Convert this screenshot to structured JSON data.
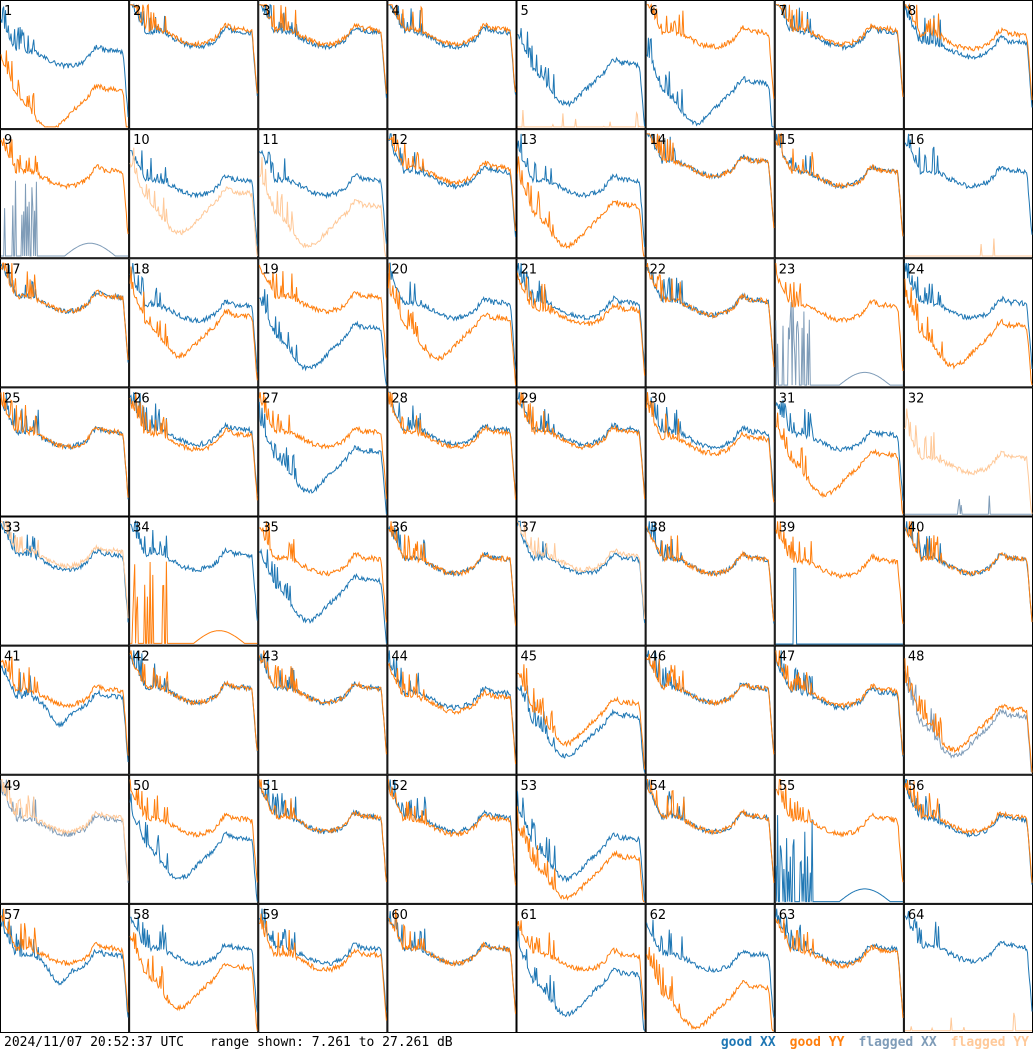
{
  "footer": {
    "timestamp": "2024/11/07 20:52:37 UTC",
    "range": "range shown: 7.261 to 27.261 dB"
  },
  "legend": [
    {
      "label": "good XX",
      "color": "#1f77b4"
    },
    {
      "label": "good YY",
      "color": "#ff7f0e"
    },
    {
      "label": "flagged XX",
      "color": "#7f9cb8"
    },
    {
      "label": "flagged YY",
      "color": "#ffc999"
    }
  ],
  "chart_data": {
    "type": "line",
    "grid": {
      "rows": 8,
      "cols": 8
    },
    "y_range_db": [
      7.261,
      27.261
    ],
    "panels": [
      {
        "label": "1",
        "xx": {
          "shape": "normal",
          "level": 0.55,
          "status": "good"
        },
        "yy": {
          "shape": "dip",
          "level": 0.25,
          "status": "good"
        }
      },
      {
        "label": "2",
        "xx": {
          "shape": "normal",
          "level": 0.7,
          "status": "good"
        },
        "yy": {
          "shape": "normal",
          "level": 0.72,
          "status": "good"
        }
      },
      {
        "label": "3",
        "xx": {
          "shape": "normal",
          "level": 0.7,
          "status": "good"
        },
        "yy": {
          "shape": "normal",
          "level": 0.72,
          "status": "good"
        }
      },
      {
        "label": "4",
        "xx": {
          "shape": "normal",
          "level": 0.7,
          "status": "good"
        },
        "yy": {
          "shape": "normal",
          "level": 0.72,
          "status": "good"
        }
      },
      {
        "label": "5",
        "xx": {
          "shape": "dip",
          "level": 0.45,
          "status": "good"
        },
        "yy": {
          "shape": "flagged_low",
          "level": 0.02,
          "status": "flagged"
        }
      },
      {
        "label": "6",
        "xx": {
          "shape": "dip",
          "level": 0.3,
          "status": "good"
        },
        "yy": {
          "shape": "normal",
          "level": 0.7,
          "status": "good"
        }
      },
      {
        "label": "7",
        "xx": {
          "shape": "normal",
          "level": 0.7,
          "status": "good"
        },
        "yy": {
          "shape": "normal",
          "level": 0.72,
          "status": "good"
        }
      },
      {
        "label": "8",
        "xx": {
          "shape": "normal",
          "level": 0.62,
          "status": "good"
        },
        "yy": {
          "shape": "normal",
          "level": 0.68,
          "status": "good"
        }
      },
      {
        "label": "9",
        "xx": {
          "shape": "spikes_low",
          "level": 0.05,
          "status": "flagged"
        },
        "yy": {
          "shape": "normal",
          "level": 0.62,
          "status": "good"
        }
      },
      {
        "label": "10",
        "xx": {
          "shape": "normal",
          "level": 0.55,
          "status": "good"
        },
        "yy": {
          "shape": "dip",
          "level": 0.45,
          "status": "flagged"
        }
      },
      {
        "label": "11",
        "xx": {
          "shape": "normal",
          "level": 0.55,
          "status": "good"
        },
        "yy": {
          "shape": "dip",
          "level": 0.35,
          "status": "flagged"
        }
      },
      {
        "label": "12",
        "xx": {
          "shape": "normal",
          "level": 0.62,
          "status": "good"
        },
        "yy": {
          "shape": "normal",
          "level": 0.65,
          "status": "good"
        }
      },
      {
        "label": "13",
        "xx": {
          "shape": "normal",
          "level": 0.55,
          "status": "good"
        },
        "yy": {
          "shape": "dip",
          "level": 0.35,
          "status": "good"
        }
      },
      {
        "label": "14",
        "xx": {
          "shape": "normal",
          "level": 0.7,
          "status": "good"
        },
        "yy": {
          "shape": "normal",
          "level": 0.7,
          "status": "good"
        }
      },
      {
        "label": "15",
        "xx": {
          "shape": "normal",
          "level": 0.62,
          "status": "good"
        },
        "yy": {
          "shape": "normal",
          "level": 0.62,
          "status": "good"
        }
      },
      {
        "label": "16",
        "xx": {
          "shape": "normal",
          "level": 0.62,
          "status": "good"
        },
        "yy": {
          "shape": "flagged_low",
          "level": 0.03,
          "status": "flagged"
        }
      },
      {
        "label": "17",
        "xx": {
          "shape": "normal",
          "level": 0.65,
          "status": "good"
        },
        "yy": {
          "shape": "normal",
          "level": 0.65,
          "status": "good"
        }
      },
      {
        "label": "18",
        "xx": {
          "shape": "normal",
          "level": 0.58,
          "status": "good"
        },
        "yy": {
          "shape": "dip",
          "level": 0.5,
          "status": "good"
        }
      },
      {
        "label": "19",
        "xx": {
          "shape": "dip",
          "level": 0.4,
          "status": "good"
        },
        "yy": {
          "shape": "normal",
          "level": 0.65,
          "status": "good"
        }
      },
      {
        "label": "20",
        "xx": {
          "shape": "normal",
          "level": 0.6,
          "status": "good"
        },
        "yy": {
          "shape": "dip",
          "level": 0.48,
          "status": "good"
        }
      },
      {
        "label": "21",
        "xx": {
          "shape": "normal",
          "level": 0.6,
          "status": "good"
        },
        "yy": {
          "shape": "normal",
          "level": 0.55,
          "status": "good"
        }
      },
      {
        "label": "22",
        "xx": {
          "shape": "normal",
          "level": 0.62,
          "status": "good"
        },
        "yy": {
          "shape": "normal",
          "level": 0.62,
          "status": "good"
        }
      },
      {
        "label": "23",
        "xx": {
          "shape": "spikes_low",
          "level": 0.1,
          "status": "flagged"
        },
        "yy": {
          "shape": "normal",
          "level": 0.58,
          "status": "good"
        }
      },
      {
        "label": "24",
        "xx": {
          "shape": "normal",
          "level": 0.6,
          "status": "good"
        },
        "yy": {
          "shape": "dip",
          "level": 0.42,
          "status": "good"
        }
      },
      {
        "label": "25",
        "xx": {
          "shape": "normal",
          "level": 0.6,
          "status": "good"
        },
        "yy": {
          "shape": "normal",
          "level": 0.6,
          "status": "good"
        }
      },
      {
        "label": "26",
        "xx": {
          "shape": "normal",
          "level": 0.62,
          "status": "good"
        },
        "yy": {
          "shape": "normal",
          "level": 0.58,
          "status": "good"
        }
      },
      {
        "label": "27",
        "xx": {
          "shape": "dip",
          "level": 0.45,
          "status": "good"
        },
        "yy": {
          "shape": "normal",
          "level": 0.6,
          "status": "good"
        }
      },
      {
        "label": "28",
        "xx": {
          "shape": "normal",
          "level": 0.62,
          "status": "good"
        },
        "yy": {
          "shape": "normal",
          "level": 0.6,
          "status": "good"
        }
      },
      {
        "label": "29",
        "xx": {
          "shape": "normal",
          "level": 0.62,
          "status": "good"
        },
        "yy": {
          "shape": "normal",
          "level": 0.6,
          "status": "good"
        }
      },
      {
        "label": "30",
        "xx": {
          "shape": "normal",
          "level": 0.6,
          "status": "good"
        },
        "yy": {
          "shape": "normal",
          "level": 0.55,
          "status": "good"
        }
      },
      {
        "label": "31",
        "xx": {
          "shape": "normal",
          "level": 0.58,
          "status": "good"
        },
        "yy": {
          "shape": "dip",
          "level": 0.42,
          "status": "good"
        }
      },
      {
        "label": "32",
        "xx": {
          "shape": "flagged_low",
          "level": 0.02,
          "status": "flagged"
        },
        "yy": {
          "shape": "normal",
          "level": 0.4,
          "status": "flagged"
        }
      },
      {
        "label": "33",
        "xx": {
          "shape": "normal",
          "level": 0.65,
          "status": "good"
        },
        "yy": {
          "shape": "normal",
          "level": 0.68,
          "status": "flagged"
        }
      },
      {
        "label": "34",
        "xx": {
          "shape": "normal",
          "level": 0.65,
          "status": "good"
        },
        "yy": {
          "shape": "spikes_low",
          "level": 0.05,
          "status": "good"
        }
      },
      {
        "label": "35",
        "xx": {
          "shape": "dip",
          "level": 0.45,
          "status": "good"
        },
        "yy": {
          "shape": "normal",
          "level": 0.62,
          "status": "good"
        }
      },
      {
        "label": "36",
        "xx": {
          "shape": "normal",
          "level": 0.62,
          "status": "good"
        },
        "yy": {
          "shape": "normal",
          "level": 0.62,
          "status": "good"
        }
      },
      {
        "label": "37",
        "xx": {
          "shape": "normal",
          "level": 0.62,
          "status": "good"
        },
        "yy": {
          "shape": "normal",
          "level": 0.65,
          "status": "flagged"
        }
      },
      {
        "label": "38",
        "xx": {
          "shape": "normal",
          "level": 0.62,
          "status": "good"
        },
        "yy": {
          "shape": "normal",
          "level": 0.62,
          "status": "good"
        }
      },
      {
        "label": "39",
        "xx": {
          "shape": "spike_single",
          "level": 0.03,
          "status": "good"
        },
        "yy": {
          "shape": "normal",
          "level": 0.6,
          "status": "good"
        }
      },
      {
        "label": "40",
        "xx": {
          "shape": "normal",
          "level": 0.62,
          "status": "good"
        },
        "yy": {
          "shape": "normal",
          "level": 0.62,
          "status": "good"
        }
      },
      {
        "label": "41",
        "xx": {
          "shape": "dip_small",
          "level": 0.55,
          "status": "good"
        },
        "yy": {
          "shape": "normal",
          "level": 0.6,
          "status": "good"
        }
      },
      {
        "label": "42",
        "xx": {
          "shape": "normal",
          "level": 0.62,
          "status": "good"
        },
        "yy": {
          "shape": "normal",
          "level": 0.62,
          "status": "good"
        }
      },
      {
        "label": "43",
        "xx": {
          "shape": "normal",
          "level": 0.62,
          "status": "good"
        },
        "yy": {
          "shape": "normal",
          "level": 0.62,
          "status": "good"
        }
      },
      {
        "label": "44",
        "xx": {
          "shape": "normal",
          "level": 0.58,
          "status": "good"
        },
        "yy": {
          "shape": "normal",
          "level": 0.55,
          "status": "good"
        }
      },
      {
        "label": "45",
        "xx": {
          "shape": "dip",
          "level": 0.4,
          "status": "good"
        },
        "yy": {
          "shape": "dip",
          "level": 0.5,
          "status": "good"
        }
      },
      {
        "label": "46",
        "xx": {
          "shape": "normal",
          "level": 0.62,
          "status": "good"
        },
        "yy": {
          "shape": "normal",
          "level": 0.62,
          "status": "good"
        }
      },
      {
        "label": "47",
        "xx": {
          "shape": "normal",
          "level": 0.58,
          "status": "good"
        },
        "yy": {
          "shape": "normal",
          "level": 0.6,
          "status": "good"
        }
      },
      {
        "label": "48",
        "xx": {
          "shape": "dip",
          "level": 0.4,
          "status": "flagged"
        },
        "yy": {
          "shape": "dip",
          "level": 0.45,
          "status": "good"
        }
      },
      {
        "label": "49",
        "xx": {
          "shape": "normal",
          "level": 0.6,
          "status": "flagged"
        },
        "yy": {
          "shape": "normal",
          "level": 0.62,
          "status": "flagged"
        }
      },
      {
        "label": "50",
        "xx": {
          "shape": "dip",
          "level": 0.45,
          "status": "good"
        },
        "yy": {
          "shape": "normal",
          "level": 0.6,
          "status": "good"
        }
      },
      {
        "label": "51",
        "xx": {
          "shape": "normal",
          "level": 0.62,
          "status": "good"
        },
        "yy": {
          "shape": "normal",
          "level": 0.62,
          "status": "good"
        }
      },
      {
        "label": "52",
        "xx": {
          "shape": "normal",
          "level": 0.62,
          "status": "good"
        },
        "yy": {
          "shape": "normal",
          "level": 0.6,
          "status": "good"
        }
      },
      {
        "label": "53",
        "xx": {
          "shape": "dip",
          "level": 0.45,
          "status": "good"
        },
        "yy": {
          "shape": "dip",
          "level": 0.3,
          "status": "good"
        }
      },
      {
        "label": "54",
        "xx": {
          "shape": "normal",
          "level": 0.62,
          "status": "good"
        },
        "yy": {
          "shape": "normal",
          "level": 0.62,
          "status": "good"
        }
      },
      {
        "label": "55",
        "xx": {
          "shape": "spikes_low",
          "level": 0.08,
          "status": "good"
        },
        "yy": {
          "shape": "normal",
          "level": 0.6,
          "status": "good"
        }
      },
      {
        "label": "56",
        "xx": {
          "shape": "normal",
          "level": 0.6,
          "status": "good"
        },
        "yy": {
          "shape": "normal",
          "level": 0.62,
          "status": "good"
        }
      },
      {
        "label": "57",
        "xx": {
          "shape": "dip_small",
          "level": 0.55,
          "status": "good"
        },
        "yy": {
          "shape": "normal",
          "level": 0.6,
          "status": "good"
        }
      },
      {
        "label": "58",
        "xx": {
          "shape": "normal",
          "level": 0.6,
          "status": "good"
        },
        "yy": {
          "shape": "dip",
          "level": 0.45,
          "status": "good"
        }
      },
      {
        "label": "59",
        "xx": {
          "shape": "normal",
          "level": 0.6,
          "status": "good"
        },
        "yy": {
          "shape": "normal",
          "level": 0.55,
          "status": "good"
        }
      },
      {
        "label": "60",
        "xx": {
          "shape": "normal",
          "level": 0.6,
          "status": "good"
        },
        "yy": {
          "shape": "normal",
          "level": 0.6,
          "status": "good"
        }
      },
      {
        "label": "61",
        "xx": {
          "shape": "dip",
          "level": 0.4,
          "status": "good"
        },
        "yy": {
          "shape": "normal",
          "level": 0.55,
          "status": "good"
        }
      },
      {
        "label": "62",
        "xx": {
          "shape": "normal",
          "level": 0.55,
          "status": "good"
        },
        "yy": {
          "shape": "dip",
          "level": 0.3,
          "status": "good"
        }
      },
      {
        "label": "63",
        "xx": {
          "shape": "normal",
          "level": 0.6,
          "status": "good"
        },
        "yy": {
          "shape": "normal",
          "level": 0.58,
          "status": "good"
        }
      },
      {
        "label": "64",
        "xx": {
          "shape": "normal",
          "level": 0.62,
          "status": "good"
        },
        "yy": {
          "shape": "flagged_low",
          "level": 0.03,
          "status": "flagged"
        }
      }
    ]
  }
}
